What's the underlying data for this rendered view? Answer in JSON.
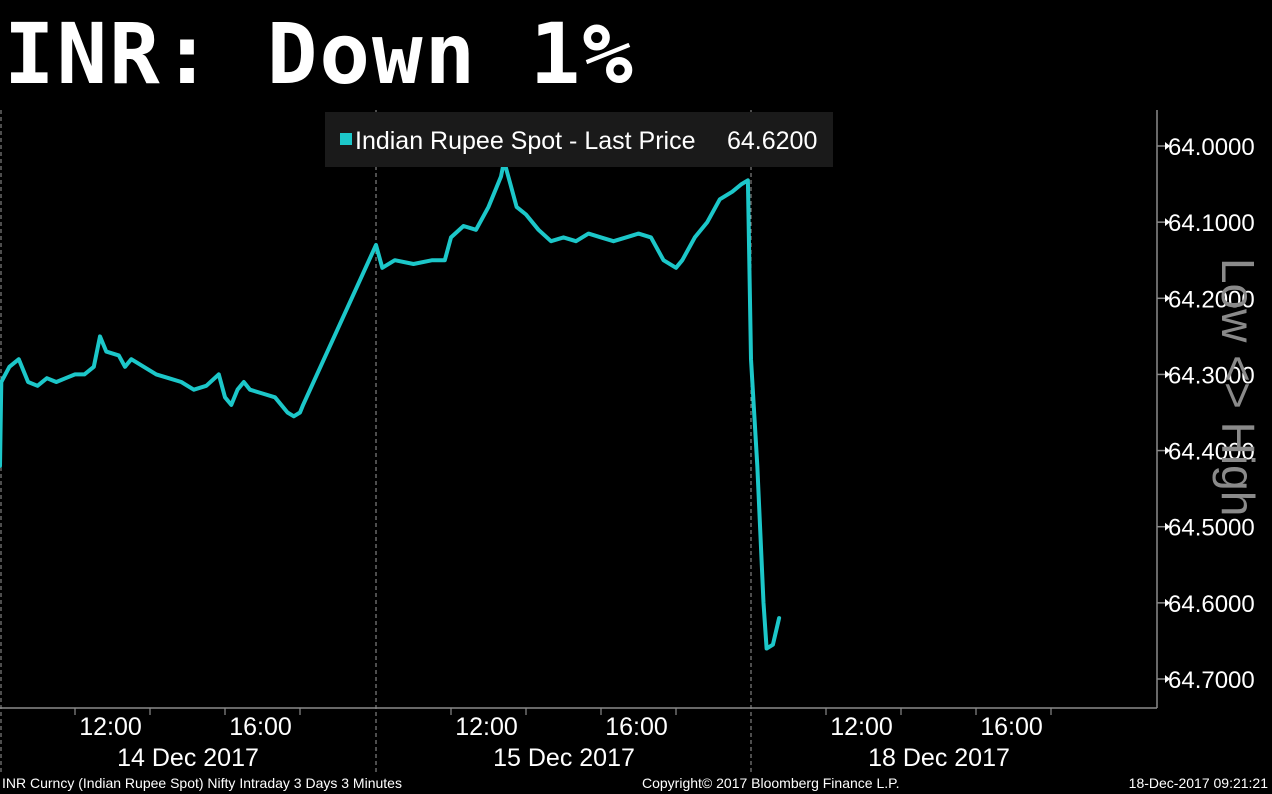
{
  "colors": {
    "background": "#000000",
    "series": "#1cc7c9",
    "legend_bg": "#1a1a1a",
    "axis": "#8a8a8a",
    "divider": "#9a9a9a"
  },
  "chart_data": {
    "type": "line",
    "title": "INR: Down 1%",
    "legend_position": "top-center",
    "y_axis": {
      "side": "right",
      "inverted": true,
      "label": "Low <> High",
      "range": [
        63.985,
        64.74
      ],
      "ticks": [
        "64.0000",
        "64.1000",
        "64.2000",
        "64.3000",
        "64.4000",
        "64.5000",
        "64.6000",
        "64.7000"
      ],
      "tick_values": [
        64.0,
        64.1,
        64.2,
        64.3,
        64.4,
        64.5,
        64.6,
        64.7
      ]
    },
    "x_axis": {
      "unit": "trading session time (3-minute bars)",
      "sessions": [
        {
          "date": "14 Dec 2017",
          "time_ticks": [
            "12:00",
            "16:00"
          ]
        },
        {
          "date": "15 Dec 2017",
          "time_ticks": [
            "12:00",
            "16:00"
          ]
        },
        {
          "date": "18 Dec 2017",
          "time_ticks": [
            "12:00",
            "16:00"
          ]
        }
      ]
    },
    "series": [
      {
        "name": "Indian Rupee Spot - Last Price",
        "last_price": "64.6200",
        "points": [
          [
            "14 Dec 09:00",
            64.42
          ],
          [
            "14 Dec 09:02",
            64.31
          ],
          [
            "14 Dec 09:15",
            64.29
          ],
          [
            "14 Dec 09:30",
            64.28
          ],
          [
            "14 Dec 09:45",
            64.31
          ],
          [
            "14 Dec 10:00",
            64.315
          ],
          [
            "14 Dec 10:15",
            64.305
          ],
          [
            "14 Dec 10:30",
            64.31
          ],
          [
            "14 Dec 10:45",
            64.305
          ],
          [
            "14 Dec 11:00",
            64.3
          ],
          [
            "14 Dec 11:15",
            64.3
          ],
          [
            "14 Dec 11:30",
            64.29
          ],
          [
            "14 Dec 11:40",
            64.25
          ],
          [
            "14 Dec 11:50",
            64.27
          ],
          [
            "14 Dec 12:10",
            64.275
          ],
          [
            "14 Dec 12:20",
            64.29
          ],
          [
            "14 Dec 12:30",
            64.28
          ],
          [
            "14 Dec 12:50",
            64.29
          ],
          [
            "14 Dec 13:10",
            64.3
          ],
          [
            "14 Dec 13:30",
            64.305
          ],
          [
            "14 Dec 13:50",
            64.31
          ],
          [
            "14 Dec 14:10",
            64.32
          ],
          [
            "14 Dec 14:30",
            64.315
          ],
          [
            "14 Dec 14:50",
            64.3
          ],
          [
            "14 Dec 15:00",
            64.33
          ],
          [
            "14 Dec 15:10",
            64.34
          ],
          [
            "14 Dec 15:20",
            64.32
          ],
          [
            "14 Dec 15:30",
            64.31
          ],
          [
            "14 Dec 15:40",
            64.32
          ],
          [
            "14 Dec 16:00",
            64.325
          ],
          [
            "14 Dec 16:20",
            64.33
          ],
          [
            "14 Dec 16:40",
            64.35
          ],
          [
            "14 Dec 16:50",
            64.355
          ],
          [
            "14 Dec 17:00",
            64.35
          ],
          [
            "14 Dec 17:05",
            64.34
          ],
          [
            "15 Dec 09:00",
            64.13
          ],
          [
            "15 Dec 09:10",
            64.16
          ],
          [
            "15 Dec 09:30",
            64.15
          ],
          [
            "15 Dec 10:00",
            64.155
          ],
          [
            "15 Dec 10:30",
            64.15
          ],
          [
            "15 Dec 10:50",
            64.15
          ],
          [
            "15 Dec 11:00",
            64.12
          ],
          [
            "15 Dec 11:20",
            64.105
          ],
          [
            "15 Dec 11:40",
            64.11
          ],
          [
            "15 Dec 12:00",
            64.08
          ],
          [
            "15 Dec 12:20",
            64.04
          ],
          [
            "15 Dec 12:25",
            64.02
          ],
          [
            "15 Dec 12:35",
            64.05
          ],
          [
            "15 Dec 12:45",
            64.08
          ],
          [
            "15 Dec 13:00",
            64.09
          ],
          [
            "15 Dec 13:20",
            64.11
          ],
          [
            "15 Dec 13:40",
            64.125
          ],
          [
            "15 Dec 14:00",
            64.12
          ],
          [
            "15 Dec 14:20",
            64.125
          ],
          [
            "15 Dec 14:40",
            64.115
          ],
          [
            "15 Dec 15:00",
            64.12
          ],
          [
            "15 Dec 15:20",
            64.125
          ],
          [
            "15 Dec 15:40",
            64.12
          ],
          [
            "15 Dec 16:00",
            64.115
          ],
          [
            "15 Dec 16:20",
            64.12
          ],
          [
            "15 Dec 16:40",
            64.15
          ],
          [
            "15 Dec 17:00",
            64.16
          ],
          [
            "15 Dec 17:10",
            64.15
          ],
          [
            "15 Dec 17:30",
            64.12
          ],
          [
            "15 Dec 17:50",
            64.1
          ],
          [
            "15 Dec 18:10",
            64.07
          ],
          [
            "15 Dec 18:30",
            64.06
          ],
          [
            "15 Dec 18:45",
            64.05
          ],
          [
            "15 Dec 18:55",
            64.045
          ],
          [
            "15 Dec 19:00",
            64.28
          ],
          [
            "15 Dec 19:10",
            64.42
          ],
          [
            "15 Dec 19:20",
            64.6
          ],
          [
            "15 Dec 19:25",
            64.66
          ],
          [
            "15 Dec 19:35",
            64.655
          ],
          [
            "15 Dec 19:45",
            64.62
          ]
        ]
      }
    ]
  },
  "footer": {
    "left": "INR Curncy (Indian Rupee Spot) Nifty Intraday 3 Days 3 Minutes",
    "center": "Copyright© 2017 Bloomberg Finance L.P.",
    "right": "18-Dec-2017 09:21:21"
  }
}
